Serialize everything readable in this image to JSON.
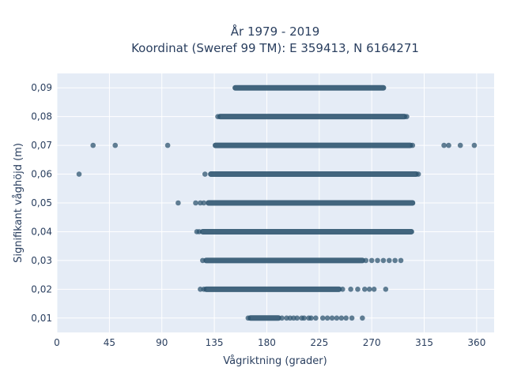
{
  "chart_data": {
    "type": "scatter",
    "title_line1": "År 1979 - 2019",
    "title_line2": "Koordinat (Sweref 99 TM): E 359413, N 6164271",
    "xlabel": "Vågriktning (grader)",
    "ylabel": "Signifikant våghöjd (m)",
    "xlim": [
      0,
      375
    ],
    "ylim": [
      0.005,
      0.095
    ],
    "x_ticks": [
      0,
      45,
      90,
      135,
      180,
      225,
      270,
      315,
      360
    ],
    "x_tick_labels": [
      "0",
      "45",
      "90",
      "135",
      "180",
      "225",
      "270",
      "315",
      "360"
    ],
    "y_ticks": [
      0.01,
      0.02,
      0.03,
      0.04,
      0.05,
      0.06,
      0.07,
      0.08,
      0.09
    ],
    "y_tick_labels": [
      "0,01",
      "0,02",
      "0,03",
      "0,04",
      "0,05",
      "0,06",
      "0,07",
      "0,08",
      "0,09"
    ],
    "grid": true,
    "legend": "none",
    "colors": {
      "plot_bg": "#e5ecf6",
      "grid": "#ffffff",
      "marker": "#2f5570",
      "text": "#2a3f5f"
    },
    "rows": [
      {
        "y": 0.09,
        "band": [
          153,
          280
        ],
        "outliers": []
      },
      {
        "y": 0.08,
        "band": [
          140,
          298
        ],
        "outliers": [
          138,
          300
        ]
      },
      {
        "y": 0.07,
        "band": [
          136,
          303
        ],
        "outliers": [
          31,
          50,
          95,
          305,
          332,
          336,
          346,
          358
        ]
      },
      {
        "y": 0.06,
        "band": [
          132,
          308
        ],
        "outliers": [
          19,
          127,
          310
        ]
      },
      {
        "y": 0.05,
        "band": [
          130,
          305
        ],
        "outliers": [
          104,
          119,
          123,
          126
        ]
      },
      {
        "y": 0.04,
        "band": [
          125,
          304
        ],
        "outliers": [
          120,
          122
        ]
      },
      {
        "y": 0.03,
        "band": [
          128,
          262
        ],
        "outliers": [
          125,
          265,
          270,
          275,
          280,
          285,
          290,
          295
        ]
      },
      {
        "y": 0.02,
        "band": [
          128,
          242
        ],
        "outliers": [
          123,
          126,
          245,
          252,
          258,
          264,
          268,
          272,
          282
        ]
      },
      {
        "y": 0.01,
        "band": [
          166,
          190
        ],
        "outliers": [
          164,
          193,
          197,
          200,
          203,
          206,
          210,
          212,
          216,
          218,
          222,
          228,
          232,
          236,
          240,
          244,
          248,
          253,
          262
        ]
      }
    ]
  }
}
